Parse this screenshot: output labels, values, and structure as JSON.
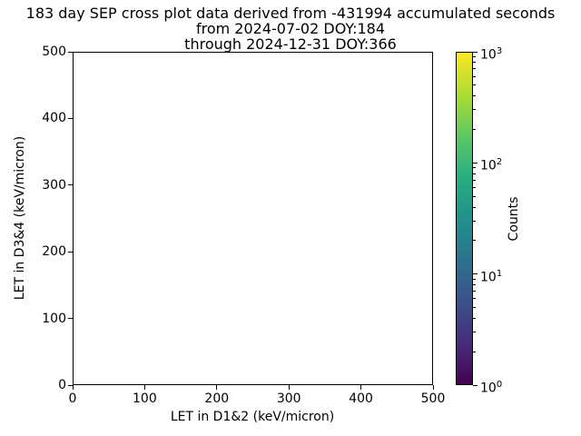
{
  "figure": {
    "background": "#ffffff",
    "title_lines": [
      "183 day SEP cross plot data derived from -431994 accumulated seconds",
      "from 2024-07-02 DOY:184",
      "through 2024-12-31 DOY:366"
    ]
  },
  "axes": {
    "xlabel": "LET in D1&2 (keV/micron)",
    "ylabel": "LET in D3&4 (keV/micron)",
    "x_tick_labels": [
      "0",
      "100",
      "200",
      "300",
      "400",
      "500"
    ],
    "y_tick_labels": [
      "0",
      "100",
      "200",
      "300",
      "400",
      "500"
    ]
  },
  "colorbar": {
    "label": "Counts",
    "tick_base": "10",
    "tick_exponents": [
      0,
      1,
      2,
      3
    ],
    "scale": "log",
    "colormap": "viridis",
    "gradient_stops": [
      "#440154",
      "#472d7b",
      "#3b528b",
      "#2c728e",
      "#21918c",
      "#28ae80",
      "#5ec962",
      "#addc30",
      "#fde725"
    ]
  },
  "chart_data": {
    "type": "heatmap",
    "title": "183 day SEP cross plot data derived from -431994 accumulated seconds\nfrom 2024-07-02 DOY:184\nthrough 2024-12-31 DOY:366",
    "xlabel": "LET in D1&2 (keV/micron)",
    "ylabel": "LET in D3&4 (keV/micron)",
    "xlim": [
      0,
      500
    ],
    "ylim": [
      0,
      500
    ],
    "x_ticks": [
      0,
      100,
      200,
      300,
      400,
      500
    ],
    "y_ticks": [
      0,
      100,
      200,
      300,
      400,
      500
    ],
    "grid": false,
    "points": [],
    "note_visible_data": "plot area is empty - no bins/points rendered",
    "colorbar": {
      "label": "Counts",
      "scale": "log",
      "min": 1,
      "max": 1000,
      "major_ticks": [
        1,
        10,
        100,
        1000
      ],
      "colormap": "viridis",
      "position": "right"
    }
  }
}
